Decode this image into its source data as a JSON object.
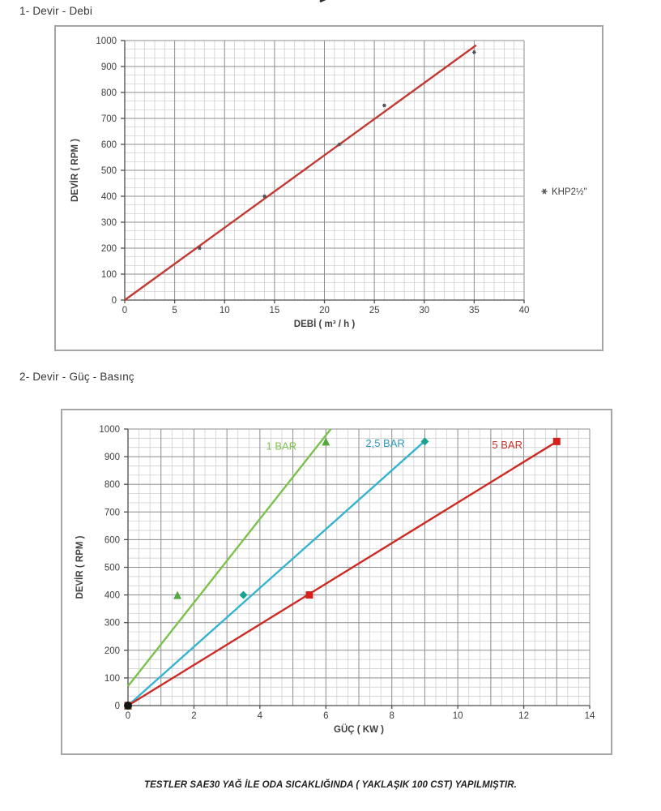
{
  "page": {
    "section1_title": "1- Devir - Debi",
    "section2_title": "2- Devir - Güç - Basınç",
    "footer_note": "TESTLER SAE30 YAĞ İLE ODA SICAKLIĞINDA ( YAKLAŞIK 100 CST) YAPILMIŞTIR."
  },
  "colors": {
    "grid_minor": "#c9c9c9",
    "grid_major": "#8f8f8f",
    "axis": "#4d4d4d",
    "text": "#3f3f3f",
    "chart1_line": "#c13a33",
    "chart1_marker": "#4a4a52",
    "bar1_line": "#7cc14e",
    "bar1_marker": "#53a93e",
    "bar25_line": "#36b3cf",
    "bar25_marker": "#18a191",
    "bar25_label": "#2e9ac0",
    "bar5_line": "#cc2b24",
    "bar5_marker": "#d5201c",
    "bar5_label": "#c2342c"
  },
  "chart_data": [
    {
      "type": "scatter",
      "title": "",
      "xlabel": "DEBİ ( m³ / h )",
      "ylabel": "DEVİR ( RPM )",
      "xlim": [
        0,
        40
      ],
      "ylim": [
        0,
        1000
      ],
      "xticks": [
        0,
        5,
        10,
        15,
        20,
        25,
        30,
        35,
        40
      ],
      "yticks": [
        0,
        100,
        200,
        300,
        400,
        500,
        600,
        700,
        800,
        900,
        1000
      ],
      "x_major_step": 5,
      "y_major_step": 100,
      "x_minor_step": 1,
      "y_minor_step": 33.3333,
      "grid": true,
      "legend_position": "right-center",
      "legend_label": "KHP2½\"",
      "series": [
        {
          "name": "KHP2½\"",
          "marker": "star",
          "marker_color_key": "chart1_marker",
          "line_color_key": "chart1_line",
          "points": [
            [
              7.5,
              200
            ],
            [
              14,
              400
            ],
            [
              21.5,
              600
            ],
            [
              26,
              750
            ],
            [
              35,
              955
            ]
          ],
          "trendline": [
            [
              0,
              0
            ],
            [
              35.2,
              982
            ]
          ]
        }
      ]
    },
    {
      "type": "scatter",
      "title": "",
      "xlabel": "GÜÇ ( KW )",
      "ylabel": "DEVİR ( RPM )",
      "xlim": [
        0,
        14
      ],
      "ylim": [
        0,
        1000
      ],
      "xticks": [
        0,
        2,
        4,
        6,
        8,
        10,
        12,
        14
      ],
      "yticks": [
        0,
        100,
        200,
        300,
        400,
        500,
        600,
        700,
        800,
        900,
        1000
      ],
      "x_major_step": 1,
      "y_major_step": 100,
      "x_minor_step": 0.33333,
      "y_minor_step": 33.3333,
      "grid": true,
      "origin_cluster": true,
      "series": [
        {
          "name": "1 BAR",
          "marker": "triangle",
          "marker_color_key": "bar1_marker",
          "line_color_key": "bar1_line",
          "label_color_key": "bar1_line",
          "label_at": [
            4.65,
            925
          ],
          "points": [
            [
              0,
              0
            ],
            [
              1.5,
              400
            ],
            [
              6,
              955
            ]
          ],
          "trendline": [
            [
              0,
              70
            ],
            [
              6.15,
              1000
            ]
          ]
        },
        {
          "name": "2,5 BAR",
          "marker": "diamond",
          "marker_color_key": "bar25_marker",
          "line_color_key": "bar25_line",
          "label_color_key": "bar25_label",
          "label_at": [
            7.8,
            935
          ],
          "points": [
            [
              0,
              0
            ],
            [
              3.5,
              400
            ],
            [
              9,
              955
            ]
          ],
          "trendline": [
            [
              0,
              0
            ],
            [
              9.05,
              962
            ]
          ]
        },
        {
          "name": "5 BAR",
          "marker": "square",
          "marker_color_key": "bar5_marker",
          "line_color_key": "bar5_line",
          "label_color_key": "bar5_label",
          "label_at": [
            11.5,
            930
          ],
          "points": [
            [
              0,
              0
            ],
            [
              5.5,
              400
            ],
            [
              13,
              955
            ]
          ],
          "trendline": [
            [
              0,
              0
            ],
            [
              13.05,
              958
            ]
          ]
        }
      ]
    }
  ]
}
